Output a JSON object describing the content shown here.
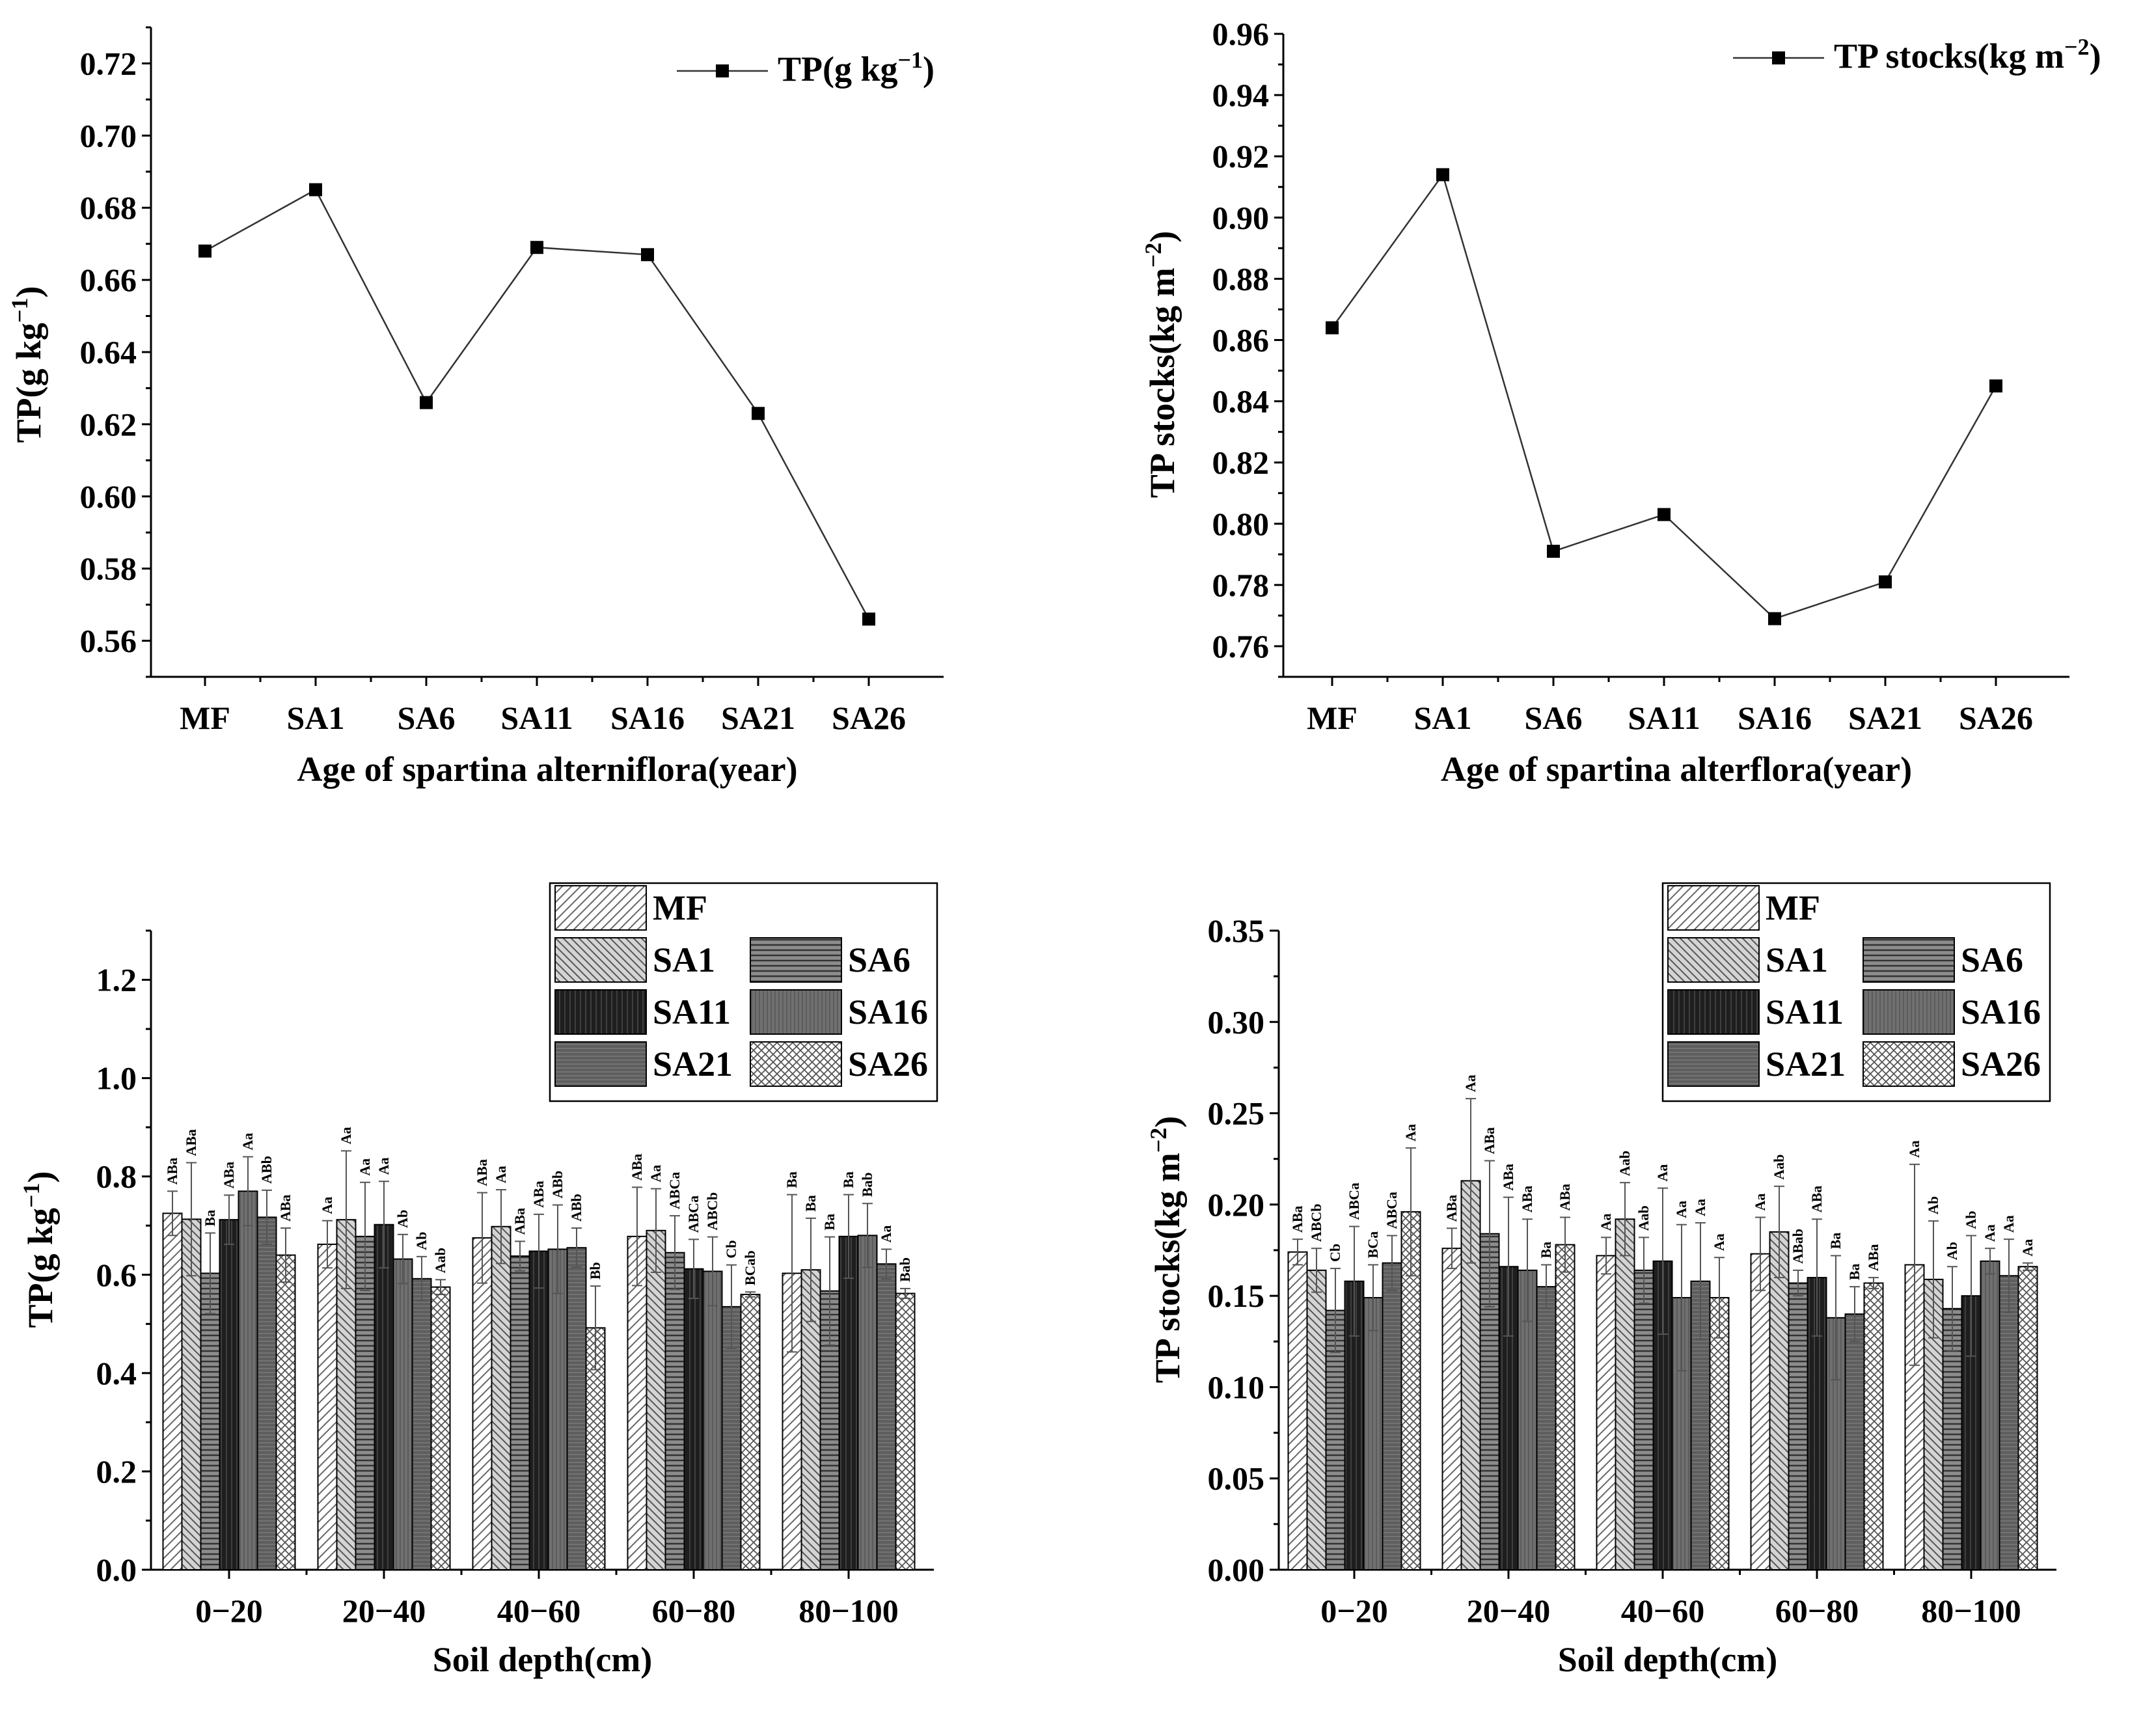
{
  "chart_data": [
    {
      "type": "line",
      "panel": "top-left",
      "categories": [
        "MF",
        "SA1",
        "SA6",
        "SA11",
        "SA16",
        "SA21",
        "SA26"
      ],
      "values": [
        0.668,
        0.685,
        0.626,
        0.669,
        0.667,
        0.623,
        0.566
      ],
      "ylim": [
        0.55,
        0.73
      ],
      "yticks": [
        "0.56",
        "0.58",
        "0.60",
        "0.62",
        "0.64",
        "0.66",
        "0.68",
        "0.70",
        "0.72"
      ],
      "ylabel_main": "TP(g kg",
      "ylabel_sup": "−1",
      "ylabel_end": ")",
      "xlabel": "Age of spartina alterniflora(year)",
      "legend": {
        "main": "TP(g kg",
        "sup": "−1",
        "end": ")",
        "position": "top-right"
      }
    },
    {
      "type": "line",
      "panel": "top-right",
      "categories": [
        "MF",
        "SA1",
        "SA6",
        "SA11",
        "SA16",
        "SA21",
        "SA26"
      ],
      "values": [
        0.864,
        0.914,
        0.791,
        0.803,
        0.769,
        0.781,
        0.845
      ],
      "ylim": [
        0.75,
        0.96
      ],
      "yticks": [
        "0.76",
        "0.78",
        "0.80",
        "0.82",
        "0.84",
        "0.86",
        "0.88",
        "0.90",
        "0.92",
        "0.94",
        "0.96"
      ],
      "ylabel_main": "TP stocks(kg m",
      "ylabel_sup": "−2",
      "ylabel_end": ")",
      "xlabel": "Age of spartina alterflora(year)",
      "legend": {
        "main": "TP stocks(kg m",
        "sup": "−2",
        "end": ")",
        "position": "top-right"
      }
    },
    {
      "type": "bar",
      "panel": "bottom-left",
      "categories": [
        "0−20",
        "20−40",
        "40−60",
        "60−80",
        "80−100"
      ],
      "ylim": [
        0,
        1.3
      ],
      "yticks": [
        "0.0",
        "0.2",
        "0.4",
        "0.6",
        "0.8",
        "1.0",
        "1.2"
      ],
      "ylabel_main": "TP(g kg",
      "ylabel_sup": "−1",
      "ylabel_end": ")",
      "xlabel": "Soil depth(cm)",
      "series": [
        {
          "name": "MF",
          "values": [
            0.725,
            0.662,
            0.675,
            0.678,
            0.603
          ],
          "err": [
            0.045,
            0.048,
            0.092,
            0.1,
            0.16
          ],
          "labels": [
            "ABa",
            "Aa",
            "ABa",
            "ABa",
            "Ba"
          ]
        },
        {
          "name": "SA1",
          "values": [
            0.713,
            0.712,
            0.698,
            0.69,
            0.61
          ],
          "err": [
            0.115,
            0.14,
            0.075,
            0.085,
            0.105
          ],
          "labels": [
            "ABa",
            "Aa",
            "Aa",
            "Aa",
            "Ba"
          ]
        },
        {
          "name": "SA6",
          "values": [
            0.603,
            0.678,
            0.638,
            0.645,
            0.567
          ],
          "err": [
            0.082,
            0.11,
            0.03,
            0.075,
            0.11
          ],
          "labels": [
            "Ba",
            "Aa",
            "ABa",
            "ABCa",
            "Ba"
          ]
        },
        {
          "name": "SA11",
          "values": [
            0.712,
            0.702,
            0.648,
            0.612,
            0.678
          ],
          "err": [
            0.05,
            0.088,
            0.075,
            0.06,
            0.085
          ],
          "labels": [
            "ABa",
            "Aa",
            "ABa",
            "ABCa",
            "Ba"
          ]
        },
        {
          "name": "SA16",
          "values": [
            0.77,
            0.632,
            0.652,
            0.607,
            0.68
          ],
          "err": [
            0.07,
            0.05,
            0.09,
            0.07,
            0.065
          ],
          "labels": [
            "Aa",
            "Ab",
            "ABb",
            "ABCb",
            "Bab"
          ]
        },
        {
          "name": "SA21",
          "values": [
            0.717,
            0.592,
            0.655,
            0.535,
            0.622
          ],
          "err": [
            0.055,
            0.045,
            0.04,
            0.085,
            0.03
          ],
          "labels": [
            "ABb",
            "Ab",
            "ABb",
            "Cb",
            "Aa"
          ]
        },
        {
          "name": "SA26",
          "values": [
            0.64,
            0.575,
            0.492,
            0.56,
            0.562
          ],
          "err": [
            0.055,
            0.015,
            0.085,
            0.005,
            0.01
          ],
          "labels": [
            "ABa",
            "Aab",
            "Bb",
            "BCab",
            "Bab"
          ]
        }
      ],
      "legend": {
        "position": "top-right"
      }
    },
    {
      "type": "bar",
      "panel": "bottom-right",
      "categories": [
        "0−20",
        "20−40",
        "40−60",
        "60−80",
        "80−100"
      ],
      "ylim": [
        0,
        0.35
      ],
      "yticks": [
        "0.00",
        "0.05",
        "0.10",
        "0.15",
        "0.20",
        "0.25",
        "0.30",
        "0.35"
      ],
      "ylabel_main": "TP stocks(kg m",
      "ylabel_sup": "−2",
      "ylabel_end": ")",
      "xlabel": "Soil depth(cm)",
      "series": [
        {
          "name": "MF",
          "values": [
            0.174,
            0.176,
            0.172,
            0.173,
            0.167
          ],
          "err": [
            0.007,
            0.011,
            0.01,
            0.02,
            0.055
          ],
          "labels": [
            "ABa",
            "ABa",
            "Aa",
            "Aa",
            "Aa"
          ]
        },
        {
          "name": "SA1",
          "values": [
            0.164,
            0.213,
            0.192,
            0.185,
            0.159
          ],
          "err": [
            0.012,
            0.045,
            0.02,
            0.025,
            0.032
          ],
          "labels": [
            "ABCb",
            "Aa",
            "Aab",
            "Aab",
            "Ab"
          ]
        },
        {
          "name": "SA6",
          "values": [
            0.142,
            0.184,
            0.164,
            0.157,
            0.143
          ],
          "err": [
            0.023,
            0.04,
            0.018,
            0.007,
            0.023
          ],
          "labels": [
            "Cb",
            "ABa",
            "Aab",
            "ABab",
            "Ab"
          ]
        },
        {
          "name": "SA11",
          "values": [
            0.158,
            0.166,
            0.169,
            0.16,
            0.15
          ],
          "err": [
            0.03,
            0.038,
            0.04,
            0.032,
            0.033
          ],
          "labels": [
            "ABCa",
            "ABa",
            "Aa",
            "ABa",
            "Ab"
          ]
        },
        {
          "name": "SA16",
          "values": [
            0.149,
            0.164,
            0.149,
            0.138,
            0.169
          ],
          "err": [
            0.018,
            0.028,
            0.04,
            0.034,
            0.007
          ],
          "labels": [
            "BCa",
            "ABa",
            "Aa",
            "Ba",
            "Aa"
          ]
        },
        {
          "name": "SA21",
          "values": [
            0.168,
            0.155,
            0.158,
            0.14,
            0.161
          ],
          "err": [
            0.015,
            0.012,
            0.032,
            0.015,
            0.02
          ],
          "labels": [
            "ABCa",
            "Ba",
            "Aa",
            "Ba",
            "Aa"
          ]
        },
        {
          "name": "SA26",
          "values": [
            0.196,
            0.178,
            0.149,
            0.157,
            0.166
          ],
          "err": [
            0.035,
            0.015,
            0.022,
            0.003,
            0.002
          ],
          "labels": [
            "Aa",
            "ABa",
            "Aa",
            "ABa",
            "Aa"
          ]
        }
      ],
      "legend": {
        "position": "top-right"
      }
    }
  ]
}
